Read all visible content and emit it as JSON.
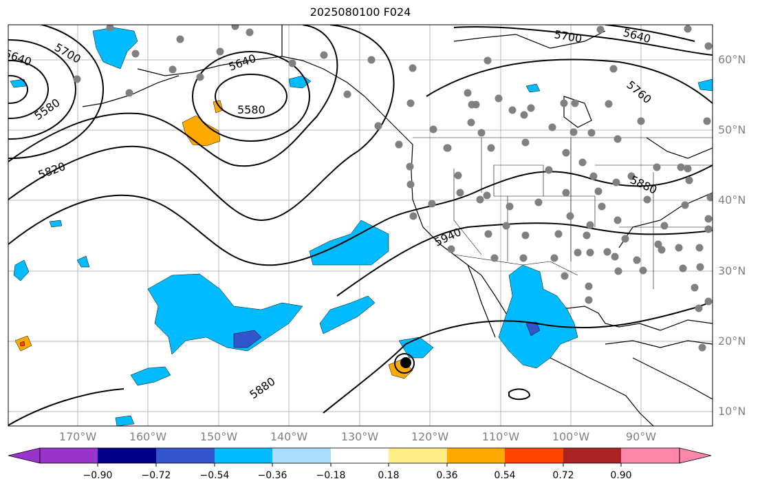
{
  "title": "2025080100 F024",
  "lat_labels": [
    "60°N",
    "50°N",
    "40°N",
    "30°N",
    "20°N",
    "10°N"
  ],
  "lon_labels": [
    "170°W",
    "160°W",
    "150°W",
    "140°W",
    "130°W",
    "120°W",
    "110°W",
    "100°W",
    "90°W"
  ],
  "contour_labels": [
    "5700",
    "5640",
    "5580",
    "5580",
    "5640",
    "5700",
    "5640",
    "5760",
    "5820",
    "5880",
    "5940",
    "5880"
  ],
  "colorbar": {
    "ticks": [
      "−0.90",
      "−0.72",
      "−0.54",
      "−0.36",
      "−0.18",
      "0.18",
      "0.36",
      "0.54",
      "0.72",
      "0.90"
    ],
    "colors": [
      "#9933cc",
      "#000088",
      "#3355cc",
      "#00bbff",
      "#aaddff",
      "#ffffff",
      "#ffee88",
      "#ffaa00",
      "#ff4400",
      "#aa2222",
      "#ff88aa"
    ]
  },
  "colors": {
    "contour": "#000000",
    "station": "#808080",
    "grid": "#999999",
    "negative_fill": "#00bbff",
    "positive_fill": "#ffaa00"
  }
}
